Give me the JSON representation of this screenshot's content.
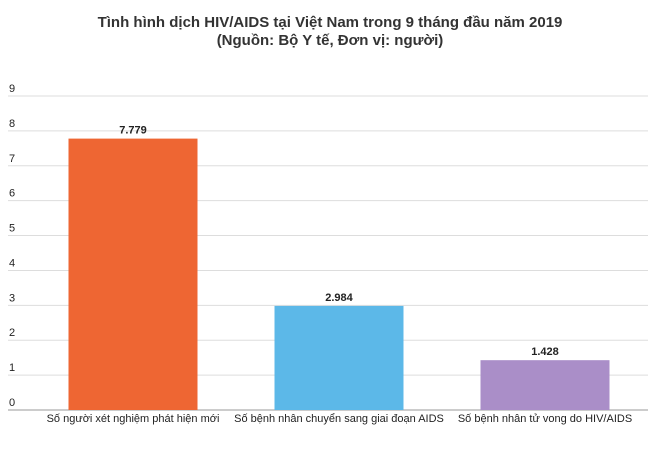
{
  "chart_data": {
    "type": "bar",
    "title": "Tình hình dịch HIV/AIDS tại Việt Nam trong 9 tháng đầu năm 2019",
    "subtitle": "(Nguồn: Bộ Y tế, Đơn vị: người)",
    "categories": [
      "Số người xét nghiệm phát hiện mới",
      "Số bệnh nhân chuyển sang giai đoạn AIDS",
      "Số bệnh nhân tử vong do HIV/AIDS"
    ],
    "values": [
      7.779,
      2.984,
      1.428
    ],
    "data_labels": [
      "7.779",
      "2.984",
      "1.428"
    ],
    "colors": [
      "#ee6633",
      "#5cb8e8",
      "#aa8ec8"
    ],
    "ylim": [
      0,
      9
    ],
    "yticks": [
      "0",
      "1",
      "2",
      "3",
      "4",
      "5",
      "6",
      "7",
      "8",
      "9"
    ],
    "grid": true,
    "legend": "none"
  }
}
